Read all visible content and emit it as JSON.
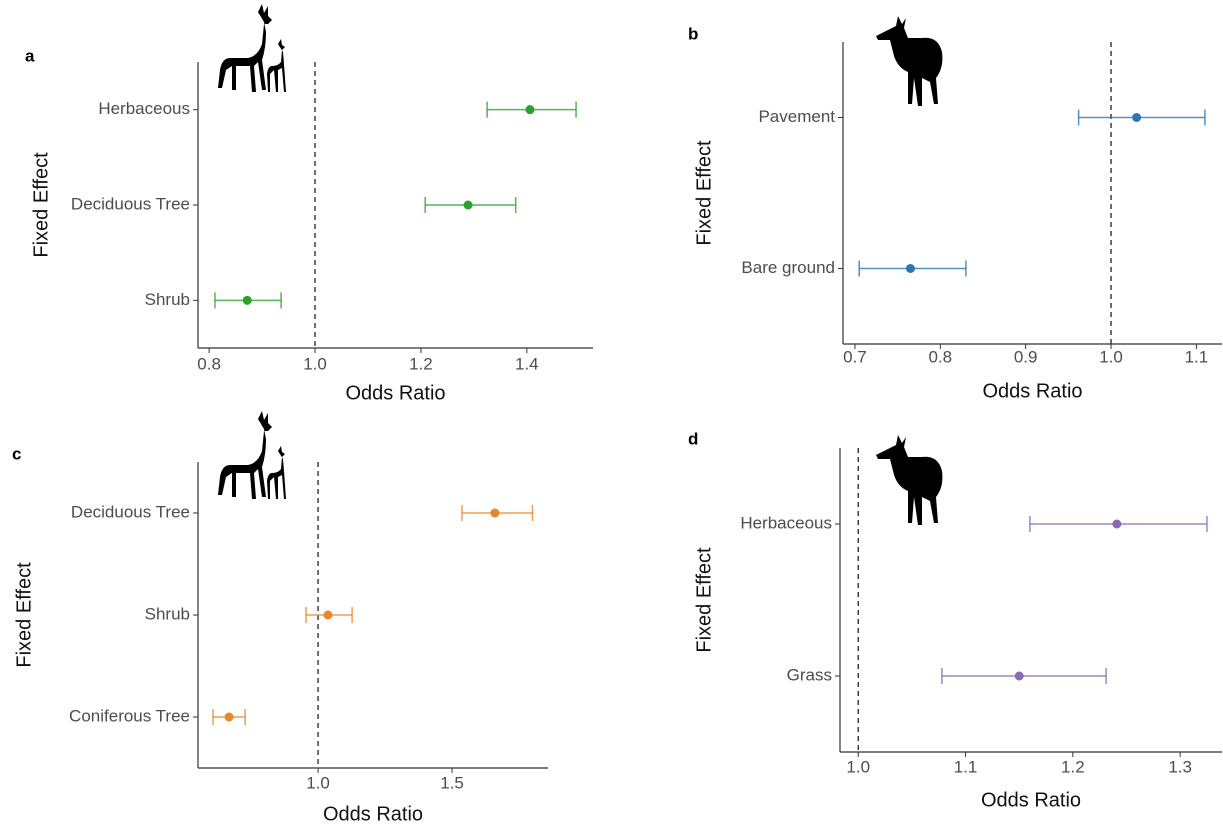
{
  "chart_data": [
    {
      "type": "forest",
      "panel_label": "a",
      "x_label": "Odds Ratio",
      "y_label": "Fixed Effect",
      "categories": [
        "Herbaceous",
        "Deciduous Tree",
        "Shrub"
      ],
      "values": [
        1.406,
        1.289,
        0.872
      ],
      "ci_low": [
        1.325,
        1.208,
        0.811
      ],
      "ci_high": [
        1.493,
        1.379,
        0.936
      ],
      "color": "#2ca02c",
      "ref_line": 1,
      "xlim": [
        0.779,
        1.525
      ],
      "xticks": [
        0.8,
        {
          "value": 1,
          "label": "1.0"
        },
        1.2,
        1.4
      ]
    },
    {
      "type": "forest",
      "panel_label": "b",
      "x_label": "Odds Ratio",
      "y_label": "Fixed Effect",
      "categories": [
        "Pavement",
        "Bare ground"
      ],
      "values": [
        1.03,
        0.765
      ],
      "ci_low": [
        0.962,
        0.705
      ],
      "ci_high": [
        1.11,
        0.83
      ],
      "color": "#2b75b0",
      "ref_line": 1,
      "xlim": [
        0.686,
        1.13
      ],
      "xticks": [
        0.7,
        0.8,
        0.9,
        {
          "value": 1,
          "label": "1.0"
        },
        1.1
      ]
    },
    {
      "type": "forest",
      "panel_label": "c",
      "x_label": "Odds Ratio",
      "y_label": "Fixed Effect",
      "categories": [
        "Deciduous Tree",
        "Shrub",
        "Coniferous Tree"
      ],
      "values": [
        1.66,
        1.037,
        0.668
      ],
      "ci_low": [
        1.537,
        0.955,
        0.608
      ],
      "ci_high": [
        1.8,
        1.127,
        0.728
      ],
      "color": "#e8862a",
      "ref_line": 1,
      "xlim": [
        0.552,
        1.858
      ],
      "xticks": [
        {
          "value": 1,
          "label": "1.0"
        },
        1.5
      ]
    },
    {
      "type": "forest",
      "panel_label": "d",
      "x_label": "Odds Ratio",
      "y_label": "Fixed Effect",
      "categories": [
        "Herbaceous",
        "Grass"
      ],
      "values": [
        1.241,
        1.15
      ],
      "ci_low": [
        1.16,
        1.078
      ],
      "ci_high": [
        1.325,
        1.231
      ],
      "color": "#8c68b3",
      "ref_line": 1,
      "xlim": [
        0.983,
        1.339
      ],
      "xticks": [
        {
          "value": 1,
          "label": "1.0"
        },
        1.1,
        1.2,
        1.3
      ]
    }
  ]
}
